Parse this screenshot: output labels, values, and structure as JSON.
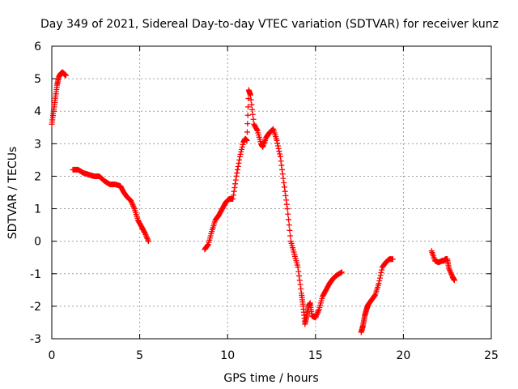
{
  "chart_data": {
    "type": "scatter",
    "title": "Day 349 of 2021, Sidereal Day-to-day VTEC variation (SDTVAR) for receiver kunz",
    "xlabel": "GPS time / hours",
    "ylabel": "SDTVAR / TECUs",
    "xlim": [
      0,
      25
    ],
    "ylim": [
      -3,
      6
    ],
    "xticks": [
      "0",
      "5",
      "10",
      "15",
      "20",
      "25"
    ],
    "yticks": [
      "-3",
      "-2",
      "-1",
      "0",
      "1",
      "2",
      "3",
      "4",
      "5",
      "6"
    ],
    "grid": true,
    "marker": "plus",
    "color": "#ff0000",
    "segments": [
      {
        "x": [
          0.0,
          0.1,
          0.2,
          0.3,
          0.4,
          0.5,
          0.6,
          0.7,
          0.8
        ],
        "y": [
          3.6,
          4.0,
          4.4,
          4.8,
          5.05,
          5.15,
          5.2,
          5.15,
          5.1
        ]
      },
      {
        "x": [
          1.2,
          1.5,
          1.8,
          2.1,
          2.4,
          2.7,
          3.0,
          3.3,
          3.6,
          3.9,
          4.1,
          4.3,
          4.5,
          4.7,
          4.9,
          5.1,
          5.3,
          5.5
        ],
        "y": [
          2.2,
          2.2,
          2.1,
          2.05,
          2.0,
          2.0,
          1.85,
          1.75,
          1.75,
          1.7,
          1.5,
          1.35,
          1.25,
          1.0,
          0.65,
          0.45,
          0.25,
          0.0
        ]
      },
      {
        "x": [
          8.7,
          8.9,
          9.1,
          9.3,
          9.5,
          9.7,
          9.9,
          10.1,
          10.3,
          10.5,
          10.7,
          10.9,
          11.0,
          11.1,
          11.2,
          11.3,
          11.5,
          11.7,
          11.9,
          12.0,
          12.2,
          12.4,
          12.6,
          12.8,
          13.0,
          13.2,
          13.4,
          13.6,
          13.8,
          14.0,
          14.2,
          14.3,
          14.4,
          14.5,
          14.6,
          14.7,
          14.8,
          15.0,
          15.2,
          15.4,
          15.6,
          15.8,
          16.0,
          16.2,
          16.5
        ],
        "y": [
          -0.25,
          -0.1,
          0.3,
          0.65,
          0.8,
          1.0,
          1.2,
          1.3,
          1.3,
          2.0,
          2.6,
          3.05,
          3.15,
          3.1,
          4.65,
          4.5,
          3.6,
          3.4,
          3.0,
          2.9,
          3.2,
          3.35,
          3.45,
          3.1,
          2.6,
          1.8,
          1.0,
          0.0,
          -0.4,
          -0.8,
          -1.6,
          -2.0,
          -2.55,
          -2.3,
          -2.0,
          -1.9,
          -2.3,
          -2.35,
          -2.1,
          -1.7,
          -1.5,
          -1.3,
          -1.15,
          -1.05,
          -0.95
        ]
      },
      {
        "x": [
          17.6,
          17.7,
          17.8,
          17.9,
          18.0,
          18.2,
          18.4,
          18.6,
          18.8,
          19.0,
          19.2,
          19.4
        ],
        "y": [
          -2.8,
          -2.6,
          -2.3,
          -2.1,
          -1.95,
          -1.8,
          -1.65,
          -1.3,
          -0.8,
          -0.65,
          -0.55,
          -0.55
        ]
      },
      {
        "x": [
          21.6,
          21.8,
          22.0,
          22.2,
          22.3,
          22.4,
          22.5,
          22.6,
          22.8,
          22.9
        ],
        "y": [
          -0.3,
          -0.6,
          -0.65,
          -0.6,
          -0.6,
          -0.55,
          -0.55,
          -0.85,
          -1.1,
          -1.2
        ]
      }
    ]
  }
}
